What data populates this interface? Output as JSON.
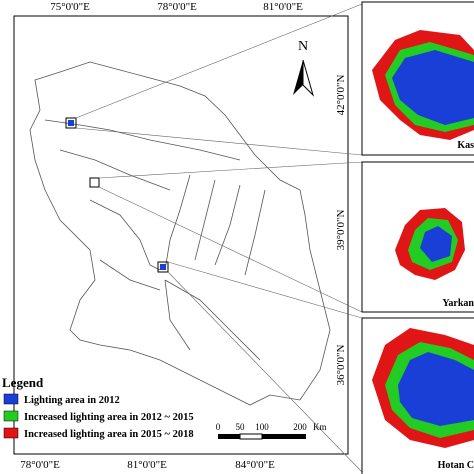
{
  "map": {
    "top_labels": [
      "75°0'0\"E",
      "78°0'0\"E",
      "81°0'0\"E"
    ],
    "bottom_labels": [
      "78°0'0\"E",
      "81°0'0\"E",
      "84°0'0\"E"
    ],
    "right_labels": [
      "42°0'0\"N",
      "39°0'0\"N",
      "36°0'0\"N"
    ],
    "north": "N",
    "legend": {
      "title": "Legend",
      "items": [
        {
          "label": "Lighting area in 2012",
          "color": "#1a3fd6"
        },
        {
          "label": "Increased lighting area in 2012 ~ 2015",
          "color": "#22cc22"
        },
        {
          "label": "Increased lighting area in 2015 ~ 2018",
          "color": "#e01515"
        }
      ]
    },
    "scale": {
      "ticks": [
        "0",
        "50",
        "100",
        "200"
      ],
      "unit": "Km"
    },
    "insets": [
      "Kas",
      "Yarkan",
      "Hotan C"
    ]
  }
}
